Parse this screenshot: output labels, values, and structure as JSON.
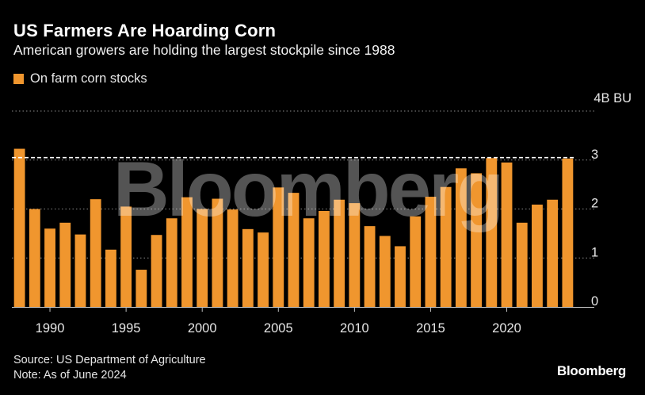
{
  "header": {
    "title": "US Farmers Are Hoarding Corn",
    "subtitle": "American growers are holding the largest stockpile since 1988"
  },
  "legend": {
    "label": "On farm corn stocks",
    "color": "#f0962e"
  },
  "footer": {
    "source": "Source: US Department of Agriculture",
    "note": "Note: As of June 2024",
    "brand": "Bloomberg"
  },
  "watermark": "Bloomberg",
  "chart_data": {
    "type": "bar",
    "title": "US Farmers Are Hoarding Corn",
    "subtitle": "American growers are holding the largest stockpile since 1988",
    "unit_label": "4B BU",
    "xlabel": "",
    "ylabel": "",
    "ylim": [
      0,
      4
    ],
    "yticks": [
      0,
      1,
      2,
      3,
      4
    ],
    "ytick_labels": [
      "0",
      "1",
      "2",
      "3",
      "4B BU"
    ],
    "xticks": [
      1990,
      1995,
      2000,
      2005,
      2010,
      2015,
      2020
    ],
    "grid": true,
    "reference_line": 3.05,
    "color": "#f0962e",
    "series": [
      {
        "name": "On farm corn stocks",
        "categories": [
          1988,
          1989,
          1990,
          1991,
          1992,
          1993,
          1994,
          1995,
          1996,
          1997,
          1998,
          1999,
          2000,
          2001,
          2002,
          2003,
          2004,
          2005,
          2006,
          2007,
          2008,
          2009,
          2010,
          2011,
          2012,
          2013,
          2014,
          2015,
          2016,
          2017,
          2018,
          2019,
          2020,
          2021,
          2022,
          2023,
          2024
        ],
        "values": [
          3.23,
          2.0,
          1.6,
          1.72,
          1.48,
          2.2,
          1.17,
          2.05,
          0.76,
          1.47,
          1.81,
          2.24,
          2.0,
          2.21,
          1.99,
          1.59,
          1.52,
          2.44,
          2.33,
          1.81,
          1.96,
          2.19,
          2.12,
          1.65,
          1.45,
          1.24,
          1.85,
          2.25,
          2.45,
          2.83,
          2.73,
          3.04,
          2.95,
          1.72,
          2.09,
          2.19,
          3.03
        ]
      }
    ]
  }
}
